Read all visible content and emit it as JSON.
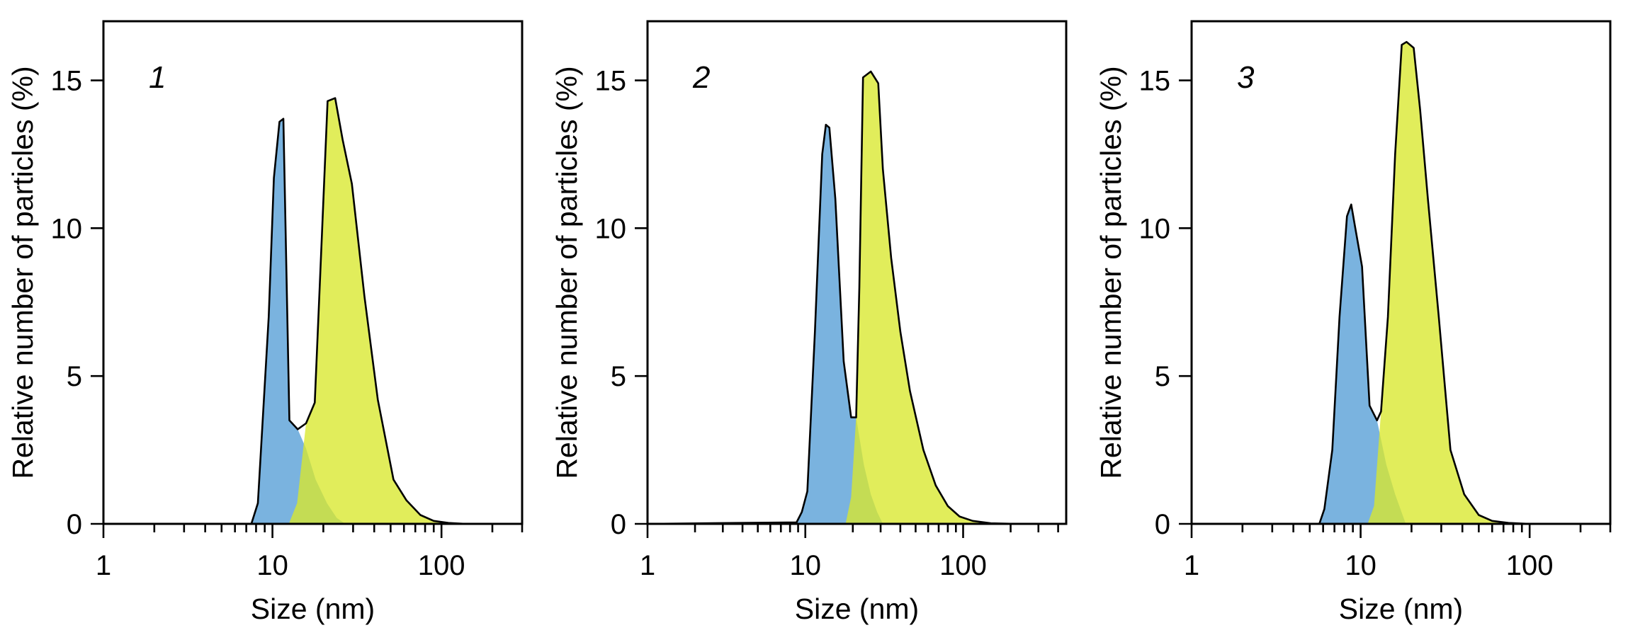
{
  "chart_data": [
    {
      "type": "area",
      "title": "1",
      "xlabel": "Size (nm)",
      "ylabel": "Relative number of particles (%)",
      "x_scale": "log",
      "xlim": [
        1,
        300
      ],
      "ylim": [
        0,
        17
      ],
      "xticks": [
        1,
        10,
        100
      ],
      "yticks": [
        0,
        5,
        10,
        15
      ],
      "envelope": {
        "x": [
          1,
          7.5,
          8.2,
          9.5,
          10.2,
          11,
          11.6,
          12.6,
          14.1,
          15.8,
          17.8,
          19.7,
          21.2,
          23.5,
          26,
          29.5,
          35,
          42,
          52,
          62,
          75,
          90,
          110,
          140,
          200,
          300
        ],
        "y": [
          0,
          0,
          0.7,
          7,
          11.7,
          13.6,
          13.7,
          3.5,
          3.2,
          3.4,
          4.1,
          10,
          14.3,
          14.4,
          13,
          11.5,
          7.7,
          4.2,
          1.5,
          0.8,
          0.3,
          0.1,
          0.03,
          0,
          0,
          0
        ]
      },
      "series": [
        {
          "color": "#7AB3DF",
          "x": [
            7.5,
            8.2,
            9.5,
            10.2,
            11,
            11.6,
            12.6,
            14.1,
            15.8,
            18,
            21,
            24,
            27
          ],
          "y": [
            0,
            0.7,
            7,
            11.7,
            13.6,
            13.7,
            3.5,
            3.2,
            2.55,
            1.5,
            0.7,
            0.2,
            0
          ]
        },
        {
          "color": "#D8E82D",
          "x": [
            12.5,
            14,
            15.8,
            17.8,
            19.7,
            21.2,
            23.5,
            26,
            29.5,
            35,
            42,
            52,
            62,
            75,
            90,
            110,
            140
          ],
          "y": [
            0,
            0.7,
            3.4,
            4.1,
            10,
            14.3,
            14.4,
            13,
            11.5,
            7.7,
            4.2,
            1.5,
            0.8,
            0.3,
            0.1,
            0.03,
            0
          ]
        }
      ]
    },
    {
      "type": "area",
      "title": "2",
      "xlabel": "Size (nm)",
      "ylabel": "Relative number of particles (%)",
      "x_scale": "log",
      "xlim": [
        1,
        450
      ],
      "ylim": [
        0,
        17
      ],
      "xticks": [
        1,
        10,
        100
      ],
      "yticks": [
        0,
        5,
        10,
        15
      ],
      "envelope": {
        "x": [
          1,
          8.8,
          9.5,
          10.3,
          11.5,
          12.8,
          13.5,
          14.2,
          15.5,
          17.5,
          19.5,
          21,
          22,
          23.2,
          26,
          29,
          31,
          35,
          40,
          46,
          56,
          67,
          80,
          95,
          115,
          150,
          220,
          450
        ],
        "y": [
          0,
          0.05,
          0.4,
          1.1,
          6.5,
          12.5,
          13.5,
          13.4,
          11,
          5.5,
          3.6,
          3.6,
          8,
          15.1,
          15.3,
          14.9,
          12,
          9,
          6.5,
          4.5,
          2.5,
          1.3,
          0.6,
          0.25,
          0.1,
          0.02,
          0,
          0
        ]
      },
      "series": [
        {
          "color": "#7AB3DF",
          "x": [
            8.8,
            9.5,
            10.3,
            11.5,
            12.8,
            13.5,
            14.2,
            15.5,
            17.5,
            19.5,
            21,
            23.5,
            26,
            28.5,
            31
          ],
          "y": [
            0.05,
            0.4,
            1.1,
            6.5,
            12.5,
            13.5,
            13.4,
            11,
            5.5,
            3.6,
            3.6,
            2,
            1,
            0.4,
            0
          ]
        },
        {
          "color": "#D8E82D",
          "x": [
            18,
            19.5,
            21,
            22,
            23.2,
            26,
            29,
            31,
            35,
            40,
            46,
            56,
            67,
            80,
            95,
            115,
            150,
            220
          ],
          "y": [
            0,
            0.9,
            3.6,
            8,
            15.1,
            15.3,
            14.9,
            12,
            9,
            6.5,
            4.5,
            2.5,
            1.3,
            0.6,
            0.25,
            0.1,
            0.02,
            0
          ]
        }
      ]
    },
    {
      "type": "area",
      "title": "3",
      "xlabel": "Size (nm)",
      "ylabel": "Relative number of particles (%)",
      "x_scale": "log",
      "xlim": [
        1,
        300
      ],
      "ylim": [
        0,
        17
      ],
      "xticks": [
        1,
        10,
        100
      ],
      "yticks": [
        0,
        5,
        10,
        15
      ],
      "envelope": {
        "x": [
          1,
          5.7,
          6.1,
          6.8,
          7.5,
          8.3,
          8.8,
          9.3,
          10.2,
          11.3,
          12.5,
          13.2,
          14.5,
          16,
          17.5,
          18.7,
          20.6,
          22.5,
          25,
          29,
          34,
          41,
          50,
          60,
          75,
          100,
          150,
          300
        ],
        "y": [
          0,
          0,
          0.5,
          2.5,
          7,
          10.4,
          10.8,
          10,
          8.7,
          4,
          3.5,
          3.8,
          7,
          12.5,
          16.2,
          16.3,
          16.1,
          14,
          11,
          7,
          2.5,
          1,
          0.3,
          0.1,
          0.03,
          0,
          0,
          0
        ]
      },
      "series": [
        {
          "color": "#7AB3DF",
          "x": [
            5.7,
            6.1,
            6.8,
            7.5,
            8.3,
            8.8,
            9.3,
            10.2,
            11.3,
            12.5,
            14.2,
            16,
            18.5
          ],
          "y": [
            0,
            0.5,
            2.5,
            7,
            10.4,
            10.8,
            10,
            8.7,
            4,
            3.5,
            2,
            1,
            0
          ]
        },
        {
          "color": "#D8E82D",
          "x": [
            11,
            12,
            13.2,
            14.5,
            16,
            17.5,
            18.7,
            20.6,
            22.5,
            25,
            29,
            34,
            41,
            50,
            60,
            75,
            100
          ],
          "y": [
            0,
            0.6,
            3.8,
            7,
            12.5,
            16.2,
            16.3,
            16.1,
            14,
            11,
            7,
            2.5,
            1,
            0.3,
            0.1,
            0.03,
            0
          ]
        }
      ]
    }
  ]
}
